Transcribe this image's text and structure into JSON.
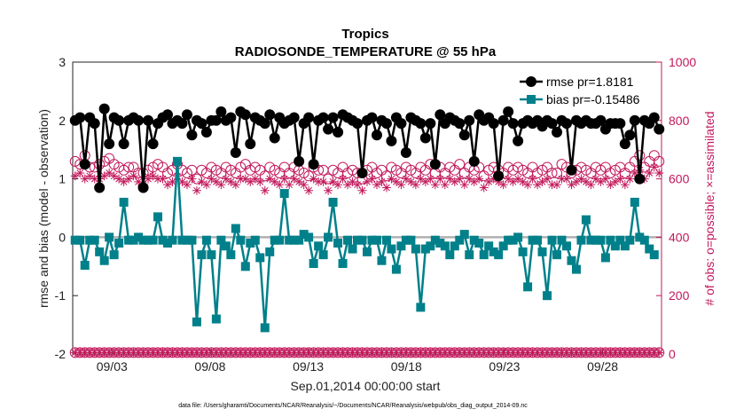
{
  "chart_data": {
    "type": "line",
    "title": "Tropics",
    "subtitle": "RADIOSONDE_TEMPERATURE @ 55 hPa",
    "xlabel": "Sep.01,2014 00:00:00 start",
    "ylabel_left": "rmse and bias (model - observation)",
    "ylabel_right": "# of obs: o=possible; ×=assimilated",
    "x_ticks": [
      "09/03",
      "09/08",
      "09/13",
      "09/18",
      "09/23",
      "09/28"
    ],
    "x_tick_days": [
      3,
      8,
      13,
      18,
      23,
      28
    ],
    "x_range_days": [
      1,
      31
    ],
    "ylim_left": [
      -2,
      3
    ],
    "ylim_right": [
      0,
      1000
    ],
    "yticks_left": [
      "3",
      "2",
      "1",
      "0",
      "-1",
      "-2"
    ],
    "yticks_right": [
      "1000",
      "800",
      "600",
      "400",
      "200",
      "0"
    ],
    "zero_line": 0,
    "footer": "data file: /Users/gharamti/Documents/NCAR/Reanalysis/~/Documents/NCAR/Reanalysis/webpub/obs_diag_output_2014-09.nc",
    "legend_position": "top-right",
    "colors": {
      "rmse": "#000000",
      "bias": "#00808a",
      "counts": "#c2185b",
      "zero": "#b0b0b0"
    },
    "series": [
      {
        "name": "rmse pr=1.8181",
        "axis": "left",
        "marker": "circle",
        "values": [
          2.0,
          2.05,
          1.25,
          2.05,
          1.95,
          0.85,
          2.2,
          1.6,
          2.05,
          2.0,
          1.6,
          2.0,
          2.05,
          2.0,
          0.85,
          2.0,
          1.6,
          1.95,
          2.05,
          2.1,
          1.95,
          2.0,
          1.95,
          2.1,
          1.75,
          2.0,
          1.95,
          1.8,
          2.0,
          2.0,
          2.15,
          2.0,
          2.05,
          1.45,
          2.15,
          2.1,
          1.6,
          2.05,
          2.0,
          1.95,
          2.1,
          1.7,
          2.05,
          1.95,
          2.0,
          2.05,
          1.3,
          1.95,
          2.05,
          1.25,
          2.0,
          2.05,
          1.85,
          2.05,
          1.8,
          2.1,
          2.05,
          2.0,
          1.95,
          1.1,
          2.0,
          2.05,
          1.75,
          2.0,
          1.95,
          1.65,
          2.05,
          1.95,
          1.45,
          2.05,
          2.0,
          1.95,
          1.7,
          1.95,
          1.25,
          2.1,
          1.95,
          2.05,
          2.0,
          1.95,
          1.75,
          2.0,
          1.3,
          2.1,
          2.0,
          2.05,
          1.95,
          1.05,
          2.0,
          2.15,
          1.95,
          1.65,
          1.95,
          2.0,
          1.95,
          2.0,
          1.9,
          2.0,
          1.95,
          1.8,
          2.0,
          1.95,
          1.15,
          2.0,
          1.95,
          2.0,
          1.95,
          1.95,
          2.0,
          1.85,
          1.95,
          1.95,
          1.95,
          1.6,
          1.75,
          2.0,
          1.0,
          2.0,
          1.95,
          2.05,
          1.85
        ]
      },
      {
        "name": "bias pr=-0.15486",
        "axis": "left",
        "marker": "square",
        "values": [
          -0.05,
          -0.05,
          -0.48,
          -0.05,
          -0.05,
          -0.25,
          -0.4,
          0.0,
          -0.3,
          -0.1,
          0.6,
          -0.05,
          -0.05,
          0.0,
          -0.05,
          -0.05,
          -0.05,
          0.35,
          -0.05,
          -0.1,
          -0.05,
          1.3,
          -0.05,
          -0.05,
          -0.05,
          -1.45,
          -0.3,
          -0.05,
          -0.3,
          -1.4,
          -0.05,
          -0.15,
          -0.3,
          0.15,
          -0.05,
          -0.5,
          -0.1,
          -0.05,
          -0.35,
          -1.55,
          -0.25,
          -0.05,
          -0.05,
          0.75,
          -0.05,
          -0.05,
          -0.05,
          0.05,
          0.0,
          -0.45,
          -0.15,
          -0.3,
          0.0,
          0.6,
          -0.1,
          -0.45,
          -0.05,
          -0.2,
          -0.05,
          -0.05,
          -0.25,
          -0.05,
          -0.05,
          -0.4,
          -0.05,
          -0.2,
          -0.55,
          -0.15,
          -0.05,
          -0.05,
          -0.2,
          -1.2,
          -0.2,
          -0.15,
          -0.05,
          -0.1,
          -0.15,
          -0.3,
          -0.15,
          -0.05,
          0.05,
          -0.3,
          -0.05,
          -0.1,
          -0.3,
          -0.15,
          -0.25,
          -0.3,
          -0.15,
          -0.05,
          -0.05,
          0.0,
          -0.25,
          -0.85,
          -0.05,
          -0.05,
          -0.25,
          -1.0,
          -0.05,
          -0.3,
          -0.05,
          -0.15,
          -0.4,
          -0.55,
          -0.05,
          0.3,
          -0.05,
          -0.05,
          -0.05,
          -0.35,
          -0.05,
          -0.15,
          -0.05,
          -0.15,
          -0.05,
          0.6,
          0.0,
          -0.05,
          -0.2,
          -0.3
        ]
      },
      {
        "name": "obs possible",
        "axis": "right",
        "marker": "open-circle",
        "values": [
          660,
          650,
          680,
          640,
          640,
          650,
          660,
          670,
          650,
          640,
          630,
          640,
          640,
          620,
          620,
          630,
          640,
          650,
          640,
          620,
          630,
          650,
          630,
          620,
          630,
          600,
          630,
          620,
          640,
          630,
          620,
          640,
          630,
          620,
          640,
          650,
          630,
          640,
          630,
          610,
          640,
          630,
          620,
          640,
          620,
          640,
          630,
          620,
          610,
          640,
          630,
          630,
          600,
          630,
          620,
          640,
          620,
          630,
          620,
          600,
          630,
          640,
          620,
          630,
          610,
          640,
          630,
          620,
          640,
          630,
          620,
          640,
          630,
          650,
          620,
          640,
          620,
          640,
          630,
          650,
          620,
          640,
          630,
          640,
          610,
          630,
          640,
          630,
          620,
          640,
          630,
          640,
          630,
          620,
          640,
          620,
          630,
          640,
          620,
          620,
          650,
          640,
          620,
          630,
          640,
          630,
          620,
          640,
          630,
          640,
          620,
          630,
          640,
          620,
          640,
          660,
          680,
          640,
          660,
          680,
          660,
          670,
          650
        ]
      },
      {
        "name": "obs assimilated",
        "axis": "right",
        "marker": "asterisk",
        "values": [
          610,
          620,
          600,
          610,
          600,
          600,
          610,
          620,
          610,
          600,
          590,
          600,
          610,
          590,
          580,
          600,
          610,
          600,
          600,
          580,
          590,
          610,
          590,
          580,
          600,
          560,
          590,
          580,
          600,
          590,
          580,
          600,
          590,
          580,
          600,
          600,
          590,
          600,
          590,
          560,
          600,
          590,
          580,
          600,
          580,
          600,
          590,
          580,
          560,
          600,
          590,
          590,
          560,
          590,
          580,
          600,
          580,
          590,
          580,
          560,
          590,
          600,
          580,
          590,
          570,
          600,
          590,
          580,
          600,
          590,
          580,
          600,
          590,
          600,
          580,
          600,
          580,
          600,
          590,
          600,
          580,
          600,
          590,
          600,
          570,
          590,
          600,
          590,
          580,
          600,
          590,
          600,
          590,
          580,
          600,
          580,
          590,
          600,
          580,
          580,
          600,
          600,
          580,
          590,
          600,
          590,
          580,
          600,
          590,
          600,
          580,
          590,
          600,
          580,
          600,
          620,
          630,
          600,
          620,
          640,
          620,
          630,
          600
        ]
      },
      {
        "name": "obs possible (bottom)",
        "axis": "right",
        "marker": "open-circle",
        "values": [
          5
        ]
      },
      {
        "name": "obs assimilated (bottom)",
        "axis": "right",
        "marker": "asterisk",
        "values": [
          5
        ]
      }
    ]
  }
}
